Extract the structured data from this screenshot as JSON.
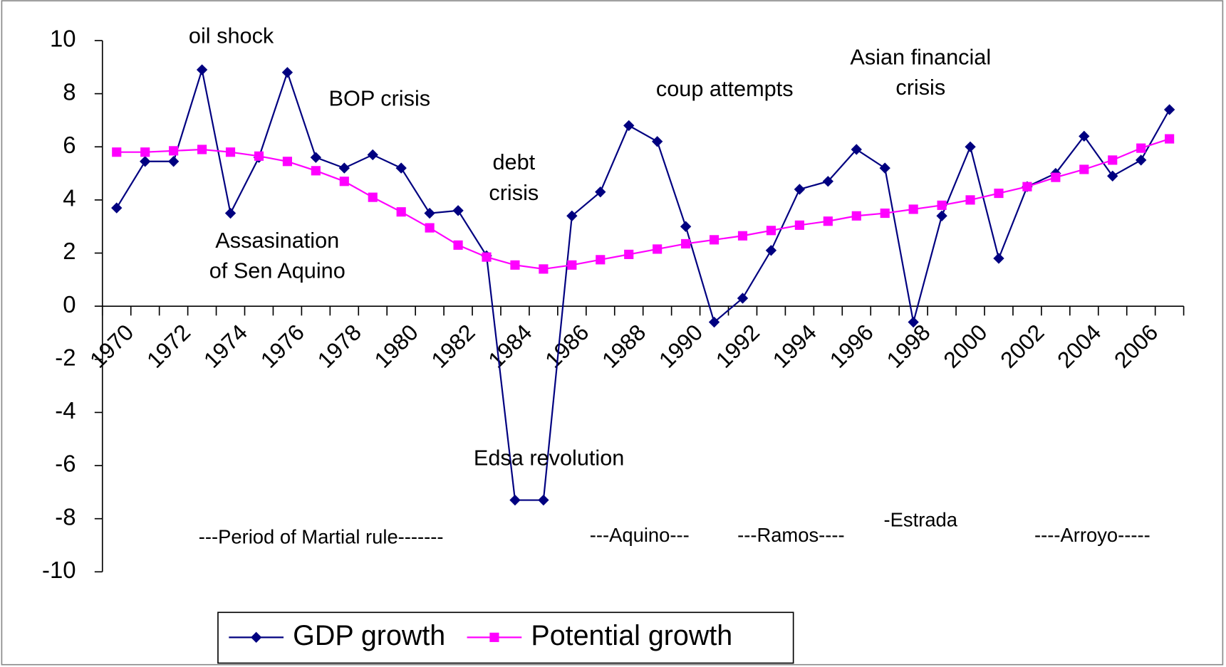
{
  "chart_data": {
    "type": "line",
    "categories": [
      "1970",
      null,
      "1972",
      null,
      "1974",
      null,
      "1976",
      null,
      "1978",
      null,
      "1980",
      null,
      "1982",
      null,
      "1984",
      null,
      "1986",
      null,
      "1988",
      null,
      "1990",
      null,
      "1992",
      null,
      "1994",
      null,
      "1996",
      null,
      "1998",
      null,
      "2000",
      null,
      "2002",
      null,
      "2004",
      null,
      "2006",
      null
    ],
    "series": [
      {
        "name": "GDP growth",
        "color": "#000080",
        "marker": "diamond",
        "values": [
          3.7,
          5.45,
          5.45,
          8.9,
          3.5,
          5.6,
          8.8,
          5.6,
          5.2,
          5.7,
          5.2,
          3.5,
          3.6,
          1.9,
          -7.3,
          -7.3,
          3.4,
          4.3,
          6.8,
          6.2,
          3.0,
          -0.6,
          0.3,
          2.1,
          4.4,
          4.7,
          5.9,
          5.2,
          -0.6,
          3.4,
          6.0,
          1.8,
          4.5,
          5.0,
          6.4,
          4.9,
          5.5,
          7.4
        ]
      },
      {
        "name": "Potential growth",
        "color": "#ff00ff",
        "marker": "square",
        "values": [
          5.8,
          5.8,
          5.85,
          5.9,
          5.8,
          5.65,
          5.45,
          5.1,
          4.7,
          4.1,
          3.55,
          2.95,
          2.3,
          1.85,
          1.55,
          1.4,
          1.55,
          1.75,
          1.95,
          2.15,
          2.35,
          2.5,
          2.65,
          2.85,
          3.05,
          3.2,
          3.4,
          3.5,
          3.65,
          3.8,
          4.0,
          4.25,
          4.5,
          4.85,
          5.15,
          5.5,
          5.95,
          6.3
        ]
      }
    ],
    "ylim": [
      -10,
      10
    ],
    "yticks": [
      -10,
      -8,
      -6,
      -4,
      -2,
      0,
      2,
      4,
      6,
      8,
      10
    ],
    "legend": "bottom",
    "annotations": [
      {
        "lines": [
          "oil shock"
        ]
      },
      {
        "lines": [
          "BOP crisis"
        ]
      },
      {
        "lines": [
          "debt",
          "crisis"
        ]
      },
      {
        "lines": [
          "Assasination",
          "of Sen Aquino"
        ]
      },
      {
        "lines": [
          "coup attempts"
        ]
      },
      {
        "lines": [
          "Asian financial",
          "crisis"
        ]
      },
      {
        "lines": [
          "Edsa revolution"
        ]
      },
      {
        "lines": [
          "---Period of Martial rule-------"
        ]
      },
      {
        "lines": [
          "---Aquino---"
        ]
      },
      {
        "lines": [
          "---Ramos----"
        ]
      },
      {
        "lines": [
          "-Estrada"
        ]
      },
      {
        "lines": [
          "----Arroyo-----"
        ]
      }
    ]
  }
}
